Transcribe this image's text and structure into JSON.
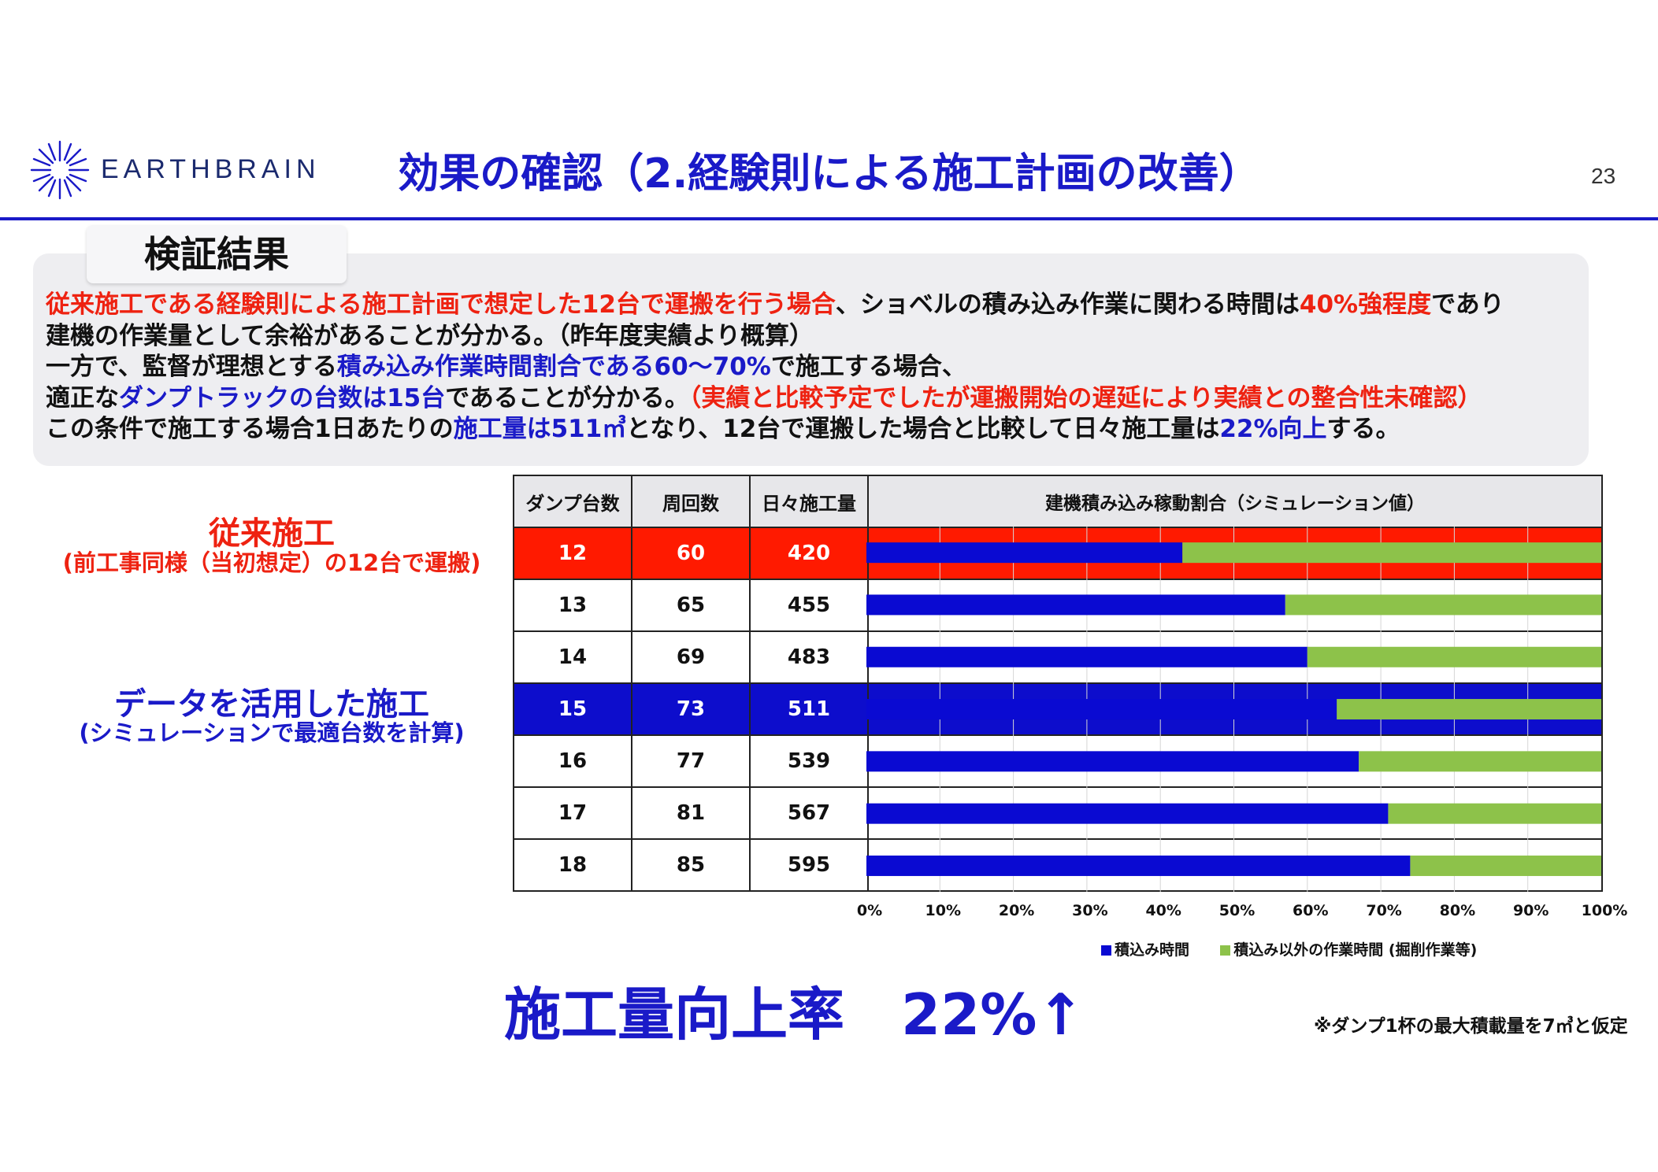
{
  "header": {
    "logo_text": "EARTHBRAIN",
    "title": "効果の確認（2.経験則による施工計画の改善）",
    "page_number": "23",
    "accent_color": "#1a1ac8"
  },
  "section": {
    "tab_label": "検証結果"
  },
  "summary": {
    "l1a": "従来施工である経験則による施工計画で想定した12台で運搬を行う場合",
    "l1b": "、ショベルの積み込み作業に関わる時間は",
    "l1c": "40%強程度",
    "l1d": "であり",
    "l2": "建機の作業量として余裕があることが分かる。（昨年度実績より概算）",
    "l3a": "一方で、監督が理想とする",
    "l3b": "積み込み作業時間割合である60～70%",
    "l3c": "で施工する場合、",
    "l4a": "適正な",
    "l4b": "ダンプトラックの台数は15台",
    "l4c": "であることが分かる。",
    "l4d": "（実績と比較予定でしたが運搬開始の遅延により実績との整合性未確認）",
    "l5a": "この条件で施工する場合1日あたりの",
    "l5b": "施工量は511㎥",
    "l5c": "となり、12台で運搬した場合と比較して日々施工量は",
    "l5d": "22%向上",
    "l5e": "する。"
  },
  "side_labels": {
    "conventional_heading": "従来施工",
    "conventional_sub": "(前工事同様（当初想定）の12台で運搬)",
    "data_heading": "データを活用した施工",
    "data_sub": "(シミュレーションで最適台数を計算)"
  },
  "table": {
    "headers": [
      "ダンプ台数",
      "周回数",
      "日々施工量",
      "建機積み込み稼動割合（シミュレーション値）"
    ],
    "rows": [
      [
        "12",
        "60",
        "420"
      ],
      [
        "13",
        "65",
        "455"
      ],
      [
        "14",
        "69",
        "483"
      ],
      [
        "15",
        "73",
        "511"
      ],
      [
        "16",
        "77",
        "539"
      ],
      [
        "17",
        "81",
        "567"
      ],
      [
        "18",
        "85",
        "595"
      ]
    ]
  },
  "chart_data": {
    "type": "bar",
    "orientation": "horizontal",
    "stacked": true,
    "title": "建機積み込み稼動割合（シミュレーション値）",
    "categories": [
      "12",
      "13",
      "14",
      "15",
      "16",
      "17",
      "18"
    ],
    "series": [
      {
        "name": "積込み時間",
        "values": [
          43,
          57,
          60,
          64,
          67,
          71,
          74
        ],
        "color": "#0a0ad2"
      },
      {
        "name": "積込み以外の作業時間 (掘削作業等)",
        "values": [
          57,
          43,
          40,
          36,
          33,
          29,
          26
        ],
        "color": "#8dc24a"
      }
    ],
    "xlim": [
      0,
      100
    ],
    "xticks": [
      "0%",
      "10%",
      "20%",
      "30%",
      "40%",
      "50%",
      "60%",
      "70%",
      "80%",
      "90%",
      "100%"
    ],
    "grid": true,
    "legend_position": "bottom"
  },
  "result": {
    "rate_text": "施工量向上率　22%↑"
  },
  "footnote": "※ダンプ1杯の最大積載量を7㎥と仮定"
}
